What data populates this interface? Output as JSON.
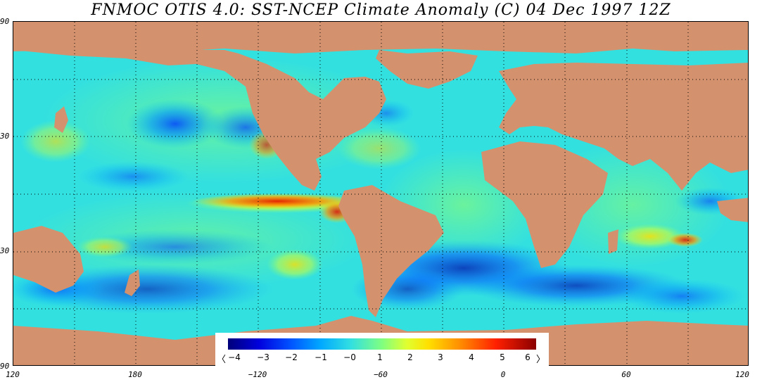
{
  "title": "FNMOC OTIS 4.0: SST-NCEP Climate Anomaly (C)   04 Dec 1997 12Z",
  "lat_labels": [
    "90",
    "30",
    "30",
    "90"
  ],
  "lon_labels": [
    "120",
    "180",
    "−120",
    "−60",
    "0",
    "60",
    "120"
  ],
  "colorbar": {
    "ticks": [
      "−4",
      "−3",
      "−2",
      "−1",
      "−0",
      "1",
      "2",
      "3",
      "4",
      "5",
      "6"
    ],
    "left_arrow": "〈",
    "right_arrow": "〉"
  },
  "colors": {
    "land": "#d4916e",
    "ocean_neutral": "#33e0e0",
    "strong_warm": "#e41a00",
    "strong_cold": "#0020d0"
  }
}
